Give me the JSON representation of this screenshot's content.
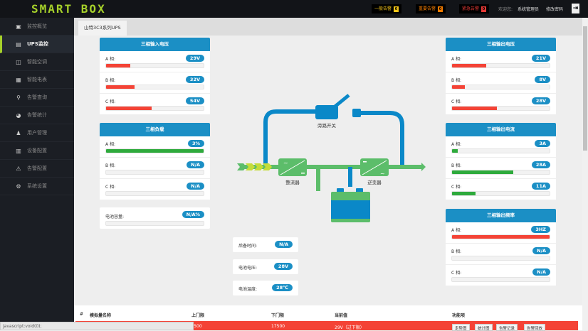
{
  "header": {
    "logo": "SMART BOX",
    "alarms": [
      {
        "label": "一般告警",
        "count": "0",
        "color": "#f5c518"
      },
      {
        "label": "重要告警",
        "count": "0",
        "color": "#f57c00"
      },
      {
        "label": "紧急告警",
        "count": "0",
        "color": "#e53935"
      }
    ],
    "welcome": "欢迎您:",
    "user": "系统管理员",
    "change_password": "修改密码"
  },
  "sidebar": {
    "items": [
      {
        "label": "监控概览",
        "icon": "▣"
      },
      {
        "label": "UPS监控",
        "icon": "▤"
      },
      {
        "label": "智能空调",
        "icon": "◫"
      },
      {
        "label": "智能电表",
        "icon": "▦"
      },
      {
        "label": "告警查询",
        "icon": "⚲"
      },
      {
        "label": "告警统计",
        "icon": "◕"
      },
      {
        "label": "用户管理",
        "icon": "♟"
      },
      {
        "label": "设备配置",
        "icon": "▥"
      },
      {
        "label": "告警配置",
        "icon": "⚠"
      },
      {
        "label": "系统设置",
        "icon": "⚙"
      }
    ],
    "active": 1
  },
  "tab": "山特3C3系列UPS",
  "panels": {
    "input_voltage": {
      "title": "三相输入电压",
      "rows": [
        {
          "label": "A 相:",
          "value": "29V",
          "pct": 25
        },
        {
          "label": "B 相:",
          "value": "32V",
          "pct": 29
        },
        {
          "label": "C 相:",
          "value": "54V",
          "pct": 47
        }
      ],
      "color": "#f44336"
    },
    "load": {
      "title": "三相负载",
      "rows": [
        {
          "label": "A 相:",
          "value": "3%",
          "pct": 100
        },
        {
          "label": "B 相:",
          "value": "N/A",
          "pct": 0
        },
        {
          "label": "C 相:",
          "value": "N/A",
          "pct": 0
        }
      ],
      "color": "#2eaa3c"
    },
    "battery_capacity": {
      "label": "电池容量:",
      "value": "N/A%",
      "pct": 0
    },
    "output_voltage": {
      "title": "三相输出电压",
      "rows": [
        {
          "label": "A 相:",
          "value": "21V",
          "pct": 35
        },
        {
          "label": "B 相:",
          "value": "8V",
          "pct": 13
        },
        {
          "label": "C 相:",
          "value": "28V",
          "pct": 46
        }
      ],
      "color": "#f44336"
    },
    "output_current": {
      "title": "三相输出电流",
      "rows": [
        {
          "label": "A 相:",
          "value": "3A",
          "pct": 6
        },
        {
          "label": "B 相:",
          "value": "28A",
          "pct": 63
        },
        {
          "label": "C 相:",
          "value": "11A",
          "pct": 24
        }
      ],
      "color": "#2eaa3c"
    },
    "output_frequency": {
      "title": "三相输出频率",
      "rows": [
        {
          "label": "A 相:",
          "value": "3HZ",
          "pct": 100
        },
        {
          "label": "B 相:",
          "value": "N/A",
          "pct": 0
        },
        {
          "label": "C 相:",
          "value": "N/A",
          "pct": 0
        }
      ],
      "color": "#f44336"
    }
  },
  "battery": {
    "backup_time": {
      "label": "后备时间:",
      "value": "N/A"
    },
    "voltage": {
      "label": "电池电压:",
      "value": "28V"
    },
    "temperature": {
      "label": "电池温度:",
      "value": "28℃"
    }
  },
  "diagram": {
    "bypass": "旁路开关",
    "rectifier": "整流器",
    "inverter": "逆变器"
  },
  "table": {
    "headers": [
      "#",
      "模拟量名称",
      "上门限",
      "下门限",
      "当前值",
      "功能项"
    ],
    "row": {
      "upper": "?500",
      "lower": "17500",
      "current": "29V（过下限）",
      "buttons": [
        "走势图",
        "统计图",
        "告警记录",
        "告警回放"
      ]
    }
  },
  "status_bar": "javascript:void(0);"
}
